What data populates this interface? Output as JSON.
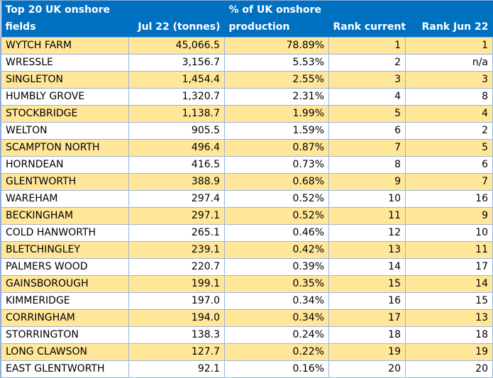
{
  "table": {
    "header": [
      [
        "Top 20 UK onshore",
        "fields"
      ],
      [
        "Jul 22 (tonnes)"
      ],
      [
        "% of UK onshore",
        "production"
      ],
      [
        "Rank current"
      ],
      [
        "Rank Jun 22"
      ]
    ],
    "rows": [
      [
        "WYTCH FARM",
        "45,066.5",
        "78.89%",
        "1",
        "1"
      ],
      [
        "WRESSLE",
        "3,156.7",
        "5.53%",
        "2",
        "n/a"
      ],
      [
        "SINGLETON",
        "1,454.4",
        "2.55%",
        "3",
        "3"
      ],
      [
        "HUMBLY GROVE",
        "1,320.7",
        "2.31%",
        "4",
        "8"
      ],
      [
        "STOCKBRIDGE",
        "1,138.7",
        "1.99%",
        "5",
        "4"
      ],
      [
        "WELTON",
        "905.5",
        "1.59%",
        "6",
        "2"
      ],
      [
        "SCAMPTON NORTH",
        "496.4",
        "0.87%",
        "7",
        "5"
      ],
      [
        "HORNDEAN",
        "416.5",
        "0.73%",
        "8",
        "6"
      ],
      [
        "GLENTWORTH",
        "388.9",
        "0.68%",
        "9",
        "7"
      ],
      [
        "WAREHAM",
        "297.4",
        "0.52%",
        "10",
        "16"
      ],
      [
        "BECKINGHAM",
        "297.1",
        "0.52%",
        "11",
        "9"
      ],
      [
        "COLD HANWORTH",
        "265.1",
        "0.46%",
        "12",
        "10"
      ],
      [
        "BLETCHINGLEY",
        "239.1",
        "0.42%",
        "13",
        "11"
      ],
      [
        "PALMERS WOOD",
        "220.7",
        "0.39%",
        "14",
        "17"
      ],
      [
        "GAINSBOROUGH",
        "199.1",
        "0.35%",
        "15",
        "14"
      ],
      [
        "KIMMERIDGE",
        "197.0",
        "0.34%",
        "16",
        "15"
      ],
      [
        "CORRINGHAM",
        "194.0",
        "0.34%",
        "17",
        "13"
      ],
      [
        "STORRINGTON",
        "138.3",
        "0.24%",
        "18",
        "18"
      ],
      [
        "LONG CLAWSON",
        "127.7",
        "0.22%",
        "19",
        "19"
      ],
      [
        "EAST GLENTWORTH",
        "92.1",
        "0.16%",
        "20",
        "20"
      ]
    ]
  }
}
